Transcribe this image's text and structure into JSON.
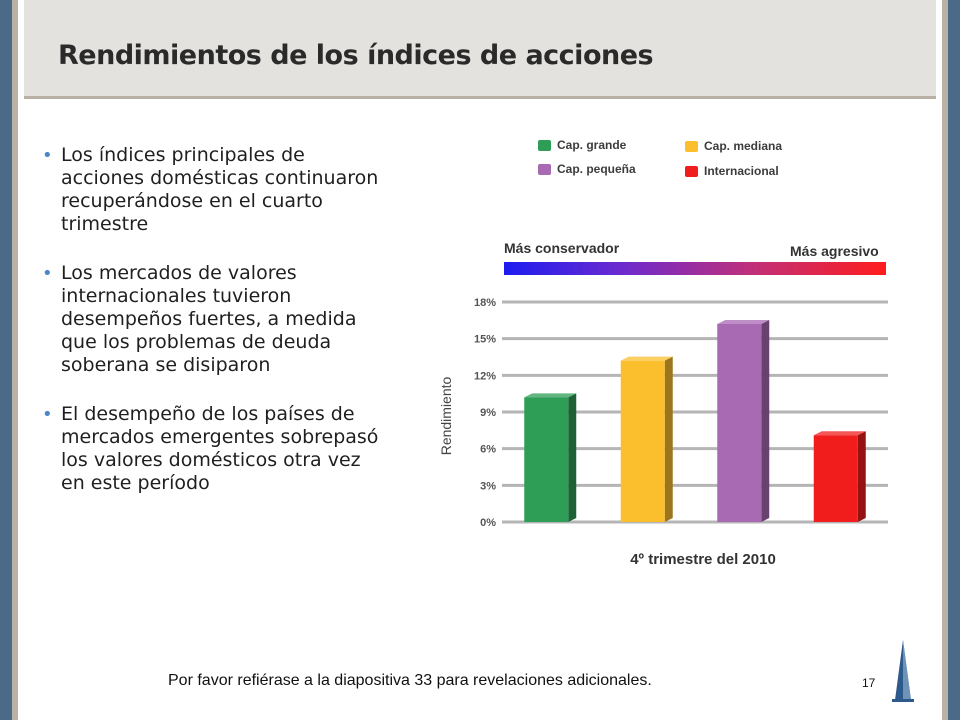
{
  "slide": {
    "title": "Rendimientos de los índices de acciones",
    "bullets": [
      "Los índices principales de acciones domésticas continuaron recuperándose en el cuarto trimestre",
      "Los mercados de valores internacionales tuvieron desempeños fuertes, a medida que los problemas de deuda soberana se disiparon",
      "El desempeño de los países de mercados emergentes sobrepasó los valores domésticos otra vez en este período"
    ],
    "footer_note": "Por favor refiérase a la diapositiva 33 para revelaciones adicionales.",
    "page_number": "17"
  },
  "scale": {
    "left_label": "Más conservador",
    "right_label": "Más agresivo"
  },
  "chart_data": {
    "type": "bar",
    "xlabel": "4º trimestre del 2010",
    "ylabel": "Rendimiento",
    "ylim": [
      0,
      18
    ],
    "yticks": [
      "0%",
      "3%",
      "6%",
      "9%",
      "12%",
      "15%",
      "18%"
    ],
    "grid": true,
    "legend_position": "top",
    "series": [
      {
        "name": "Cap. grande",
        "value": 10.2,
        "color": "#2e9e57"
      },
      {
        "name": "Cap. mediana",
        "value": 13.2,
        "color": "#fbbf2e"
      },
      {
        "name": "Cap. pequeña",
        "value": 16.2,
        "color": "#a86ab3"
      },
      {
        "name": "Internacional",
        "value": 7.1,
        "color": "#f11d1d"
      }
    ]
  },
  "colors": {
    "accent": "#4a86c8",
    "frame": "#4a6a87",
    "header": "#e4e2de"
  }
}
